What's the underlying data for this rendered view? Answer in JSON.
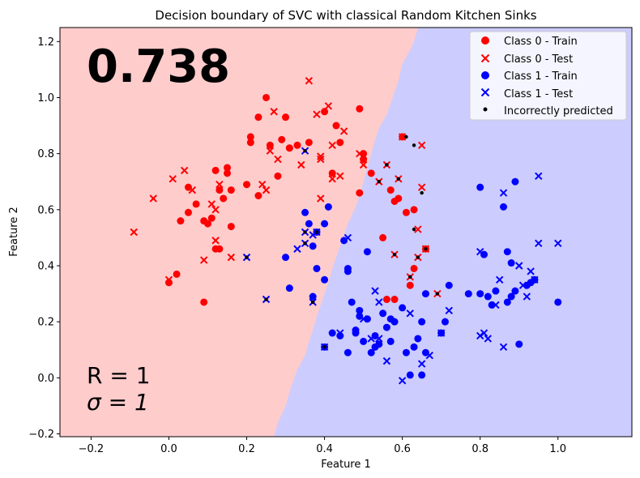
{
  "chart_data": {
    "type": "scatter",
    "title": "Decision boundary of SVC with classical Random Kitchen Sinks",
    "xlabel": "Feature 1",
    "ylabel": "Feature 2",
    "xlim": [
      -0.28,
      1.19
    ],
    "ylim": [
      -0.21,
      1.25
    ],
    "xticks": [
      -0.2,
      0.0,
      0.2,
      0.4,
      0.6,
      0.8,
      1.0
    ],
    "xtick_labels": [
      "−0.2",
      "0.0",
      "0.2",
      "0.4",
      "0.6",
      "0.8",
      "1.0"
    ],
    "yticks": [
      -0.2,
      0.0,
      0.2,
      0.4,
      0.6,
      0.8,
      1.0,
      1.2
    ],
    "ytick_labels": [
      "−0.2",
      "0.0",
      "0.2",
      "0.4",
      "0.6",
      "0.8",
      "1.0",
      "1.2"
    ],
    "grid": false,
    "legend_position": "top-right",
    "score_text": "0.738",
    "param_R_text": "R = 1",
    "param_sigma_text": "σ = 1",
    "region_colors": {
      "class0": "#ffcccc",
      "class1": "#ccccff"
    },
    "decision_boundary": [
      [
        0.64,
        1.25
      ],
      [
        0.63,
        1.2
      ],
      [
        0.62,
        1.17
      ],
      [
        0.6,
        1.12
      ],
      [
        0.59,
        1.06
      ],
      [
        0.58,
        1.02
      ],
      [
        0.57,
        0.98
      ],
      [
        0.56,
        0.94
      ],
      [
        0.54,
        0.89
      ],
      [
        0.53,
        0.85
      ],
      [
        0.52,
        0.8
      ],
      [
        0.51,
        0.75
      ],
      [
        0.5,
        0.7
      ],
      [
        0.49,
        0.65
      ],
      [
        0.48,
        0.61
      ],
      [
        0.47,
        0.58
      ],
      [
        0.46,
        0.55
      ],
      [
        0.45,
        0.51
      ],
      [
        0.44,
        0.47
      ],
      [
        0.43,
        0.43
      ],
      [
        0.42,
        0.39
      ],
      [
        0.41,
        0.34
      ],
      [
        0.4,
        0.3
      ],
      [
        0.39,
        0.26
      ],
      [
        0.38,
        0.22
      ],
      [
        0.37,
        0.17
      ],
      [
        0.36,
        0.13
      ],
      [
        0.35,
        0.08
      ],
      [
        0.33,
        0.03
      ],
      [
        0.32,
        -0.01
      ],
      [
        0.31,
        -0.05
      ],
      [
        0.3,
        -0.1
      ],
      [
        0.28,
        -0.16
      ],
      [
        0.27,
        -0.21
      ]
    ],
    "series": [
      {
        "name": "Class 0 - Train",
        "color": "#ff0000",
        "marker": "circle",
        "points": [
          [
            0.0,
            0.34
          ],
          [
            0.02,
            0.37
          ],
          [
            0.03,
            0.56
          ],
          [
            0.05,
            0.59
          ],
          [
            0.05,
            0.68
          ],
          [
            0.07,
            0.62
          ],
          [
            0.09,
            0.27
          ],
          [
            0.09,
            0.56
          ],
          [
            0.1,
            0.55
          ],
          [
            0.11,
            0.57
          ],
          [
            0.12,
            0.46
          ],
          [
            0.12,
            0.74
          ],
          [
            0.13,
            0.46
          ],
          [
            0.13,
            0.67
          ],
          [
            0.14,
            0.64
          ],
          [
            0.15,
            0.75
          ],
          [
            0.15,
            0.73
          ],
          [
            0.16,
            0.67
          ],
          [
            0.16,
            0.54
          ],
          [
            0.2,
            0.69
          ],
          [
            0.21,
            0.86
          ],
          [
            0.21,
            0.84
          ],
          [
            0.23,
            0.93
          ],
          [
            0.23,
            0.65
          ],
          [
            0.25,
            1.0
          ],
          [
            0.26,
            0.83
          ],
          [
            0.28,
            0.72
          ],
          [
            0.29,
            0.85
          ],
          [
            0.3,
            0.93
          ],
          [
            0.31,
            0.82
          ],
          [
            0.31,
            0.82
          ],
          [
            0.33,
            0.83
          ],
          [
            0.36,
            0.84
          ],
          [
            0.4,
            0.95
          ],
          [
            0.42,
            0.73
          ],
          [
            0.43,
            0.9
          ],
          [
            0.44,
            0.84
          ],
          [
            0.49,
            0.96
          ],
          [
            0.49,
            0.66
          ],
          [
            0.5,
            0.78
          ],
          [
            0.5,
            0.8
          ],
          [
            0.52,
            0.73
          ],
          [
            0.55,
            0.5
          ],
          [
            0.56,
            0.28
          ],
          [
            0.57,
            0.67
          ],
          [
            0.58,
            0.63
          ],
          [
            0.58,
            0.28
          ],
          [
            0.59,
            0.64
          ],
          [
            0.6,
            0.86
          ],
          [
            0.61,
            0.59
          ],
          [
            0.62,
            0.33
          ],
          [
            0.63,
            0.6
          ],
          [
            0.63,
            0.39
          ],
          [
            0.66,
            0.46
          ]
        ]
      },
      {
        "name": "Class 0 - Test",
        "color": "#ff0000",
        "marker": "x",
        "points": [
          [
            -0.09,
            0.52
          ],
          [
            -0.04,
            0.64
          ],
          [
            0.0,
            0.35
          ],
          [
            0.01,
            0.71
          ],
          [
            0.04,
            0.74
          ],
          [
            0.06,
            0.67
          ],
          [
            0.09,
            0.42
          ],
          [
            0.11,
            0.62
          ],
          [
            0.12,
            0.49
          ],
          [
            0.12,
            0.6
          ],
          [
            0.13,
            0.69
          ],
          [
            0.16,
            0.43
          ],
          [
            0.24,
            0.69
          ],
          [
            0.25,
            0.67
          ],
          [
            0.26,
            0.81
          ],
          [
            0.27,
            0.95
          ],
          [
            0.28,
            0.78
          ],
          [
            0.34,
            0.76
          ],
          [
            0.36,
            1.06
          ],
          [
            0.38,
            0.94
          ],
          [
            0.39,
            0.78
          ],
          [
            0.39,
            0.79
          ],
          [
            0.39,
            0.64
          ],
          [
            0.41,
            0.97
          ],
          [
            0.42,
            0.71
          ],
          [
            0.42,
            0.83
          ],
          [
            0.44,
            0.72
          ],
          [
            0.45,
            0.88
          ],
          [
            0.49,
            0.8
          ],
          [
            0.5,
            0.76
          ],
          [
            0.54,
            0.7
          ],
          [
            0.56,
            0.76
          ],
          [
            0.58,
            0.44
          ],
          [
            0.59,
            0.71
          ],
          [
            0.6,
            0.86
          ],
          [
            0.62,
            0.36
          ],
          [
            0.64,
            0.43
          ],
          [
            0.64,
            0.53
          ],
          [
            0.65,
            0.68
          ],
          [
            0.65,
            0.83
          ],
          [
            0.66,
            0.46
          ],
          [
            0.69,
            0.3
          ]
        ]
      },
      {
        "name": "Class 1 - Train",
        "color": "#0000ff",
        "marker": "circle",
        "points": [
          [
            0.3,
            0.43
          ],
          [
            0.31,
            0.32
          ],
          [
            0.35,
            0.59
          ],
          [
            0.36,
            0.55
          ],
          [
            0.37,
            0.47
          ],
          [
            0.37,
            0.29
          ],
          [
            0.38,
            0.39
          ],
          [
            0.38,
            0.52
          ],
          [
            0.4,
            0.11
          ],
          [
            0.4,
            0.55
          ],
          [
            0.4,
            0.35
          ],
          [
            0.41,
            0.61
          ],
          [
            0.42,
            0.16
          ],
          [
            0.44,
            0.15
          ],
          [
            0.45,
            0.49
          ],
          [
            0.46,
            0.09
          ],
          [
            0.46,
            0.39
          ],
          [
            0.46,
            0.38
          ],
          [
            0.47,
            0.27
          ],
          [
            0.48,
            0.17
          ],
          [
            0.48,
            0.16
          ],
          [
            0.49,
            0.22
          ],
          [
            0.49,
            0.24
          ],
          [
            0.5,
            0.13
          ],
          [
            0.51,
            0.21
          ],
          [
            0.51,
            0.45
          ],
          [
            0.52,
            0.09
          ],
          [
            0.53,
            0.15
          ],
          [
            0.53,
            0.11
          ],
          [
            0.54,
            0.12
          ],
          [
            0.55,
            0.23
          ],
          [
            0.56,
            0.18
          ],
          [
            0.57,
            0.13
          ],
          [
            0.57,
            0.21
          ],
          [
            0.58,
            0.2
          ],
          [
            0.6,
            0.25
          ],
          [
            0.61,
            0.09
          ],
          [
            0.62,
            0.01
          ],
          [
            0.63,
            0.11
          ],
          [
            0.64,
            0.14
          ],
          [
            0.65,
            0.2
          ],
          [
            0.65,
            0.01
          ],
          [
            0.66,
            0.3
          ],
          [
            0.66,
            0.09
          ],
          [
            0.7,
            0.16
          ],
          [
            0.71,
            0.2
          ],
          [
            0.72,
            0.33
          ],
          [
            0.77,
            0.3
          ],
          [
            0.8,
            0.68
          ],
          [
            0.8,
            0.3
          ],
          [
            0.81,
            0.44
          ],
          [
            0.82,
            0.29
          ],
          [
            0.83,
            0.26
          ],
          [
            0.84,
            0.31
          ],
          [
            0.86,
            0.61
          ],
          [
            0.87,
            0.27
          ],
          [
            0.87,
            0.45
          ],
          [
            0.88,
            0.41
          ],
          [
            0.88,
            0.29
          ],
          [
            0.89,
            0.31
          ],
          [
            0.89,
            0.7
          ],
          [
            0.9,
            0.12
          ],
          [
            0.92,
            0.33
          ],
          [
            0.93,
            0.34
          ],
          [
            0.94,
            0.35
          ],
          [
            1.0,
            0.27
          ]
        ]
      },
      {
        "name": "Class 1 - Test",
        "color": "#0000ff",
        "marker": "x",
        "points": [
          [
            0.2,
            0.43
          ],
          [
            0.25,
            0.28
          ],
          [
            0.33,
            0.46
          ],
          [
            0.35,
            0.48
          ],
          [
            0.35,
            0.52
          ],
          [
            0.35,
            0.81
          ],
          [
            0.37,
            0.27
          ],
          [
            0.37,
            0.51
          ],
          [
            0.38,
            0.52
          ],
          [
            0.4,
            0.11
          ],
          [
            0.44,
            0.16
          ],
          [
            0.46,
            0.5
          ],
          [
            0.5,
            0.21
          ],
          [
            0.52,
            0.14
          ],
          [
            0.53,
            0.31
          ],
          [
            0.54,
            0.27
          ],
          [
            0.54,
            0.14
          ],
          [
            0.56,
            0.06
          ],
          [
            0.6,
            -0.01
          ],
          [
            0.62,
            0.23
          ],
          [
            0.65,
            0.05
          ],
          [
            0.67,
            0.08
          ],
          [
            0.7,
            0.16
          ],
          [
            0.72,
            0.24
          ],
          [
            0.8,
            0.45
          ],
          [
            0.8,
            0.15
          ],
          [
            0.81,
            0.16
          ],
          [
            0.82,
            0.14
          ],
          [
            0.84,
            0.26
          ],
          [
            0.85,
            0.35
          ],
          [
            0.86,
            0.11
          ],
          [
            0.86,
            0.66
          ],
          [
            0.9,
            0.4
          ],
          [
            0.91,
            0.33
          ],
          [
            0.92,
            0.29
          ],
          [
            0.93,
            0.38
          ],
          [
            0.94,
            0.35
          ],
          [
            0.95,
            0.48
          ],
          [
            0.95,
            0.72
          ],
          [
            1.0,
            0.48
          ]
        ]
      },
      {
        "name": "Incorrectly predicted",
        "color": "#000000",
        "marker": "dot",
        "points": [
          [
            0.2,
            0.43
          ],
          [
            0.25,
            0.28
          ],
          [
            0.35,
            0.81
          ],
          [
            0.35,
            0.48
          ],
          [
            0.35,
            0.52
          ],
          [
            0.37,
            0.27
          ],
          [
            0.38,
            0.52
          ],
          [
            0.4,
            0.11
          ],
          [
            0.54,
            0.7
          ],
          [
            0.56,
            0.76
          ],
          [
            0.58,
            0.44
          ],
          [
            0.59,
            0.71
          ],
          [
            0.61,
            0.86
          ],
          [
            0.62,
            0.36
          ],
          [
            0.63,
            0.53
          ],
          [
            0.63,
            0.83
          ],
          [
            0.64,
            0.43
          ],
          [
            0.65,
            0.66
          ],
          [
            0.66,
            0.46
          ],
          [
            0.69,
            0.3
          ]
        ]
      }
    ]
  }
}
